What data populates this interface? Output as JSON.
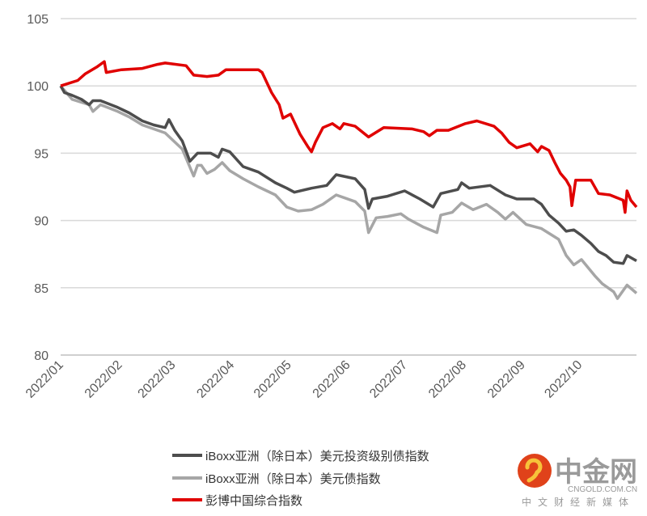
{
  "chart_data": {
    "type": "line",
    "title": "",
    "xlabel": "",
    "ylabel": "",
    "ylim": [
      80,
      105
    ],
    "yticks": [
      80,
      85,
      90,
      95,
      100,
      105
    ],
    "xlim": [
      "2022-01-01",
      "2022-10-31"
    ],
    "xticks": [
      {
        "date": "2022-01-01",
        "label": "2022/01"
      },
      {
        "date": "2022-02-01",
        "label": "2022/02"
      },
      {
        "date": "2022-03-01",
        "label": "2022/03"
      },
      {
        "date": "2022-04-01",
        "label": "2022/04"
      },
      {
        "date": "2022-05-01",
        "label": "2022/05"
      },
      {
        "date": "2022-06-01",
        "label": "2022/06"
      },
      {
        "date": "2022-07-01",
        "label": "2022/07"
      },
      {
        "date": "2022-08-01",
        "label": "2022/08"
      },
      {
        "date": "2022-09-01",
        "label": "2022/09"
      },
      {
        "date": "2022-10-01",
        "label": "2022/10"
      }
    ],
    "grid": true,
    "legend_position": "bottom",
    "series": [
      {
        "name": "iBoxx亚洲（除日本）美元投资级别债指数",
        "color": "#4d4d4d",
        "points": [
          [
            "2022-01-01",
            100.0
          ],
          [
            "2022-01-03",
            99.5
          ],
          [
            "2022-01-07",
            99.3
          ],
          [
            "2022-01-12",
            99.0
          ],
          [
            "2022-01-16",
            98.6
          ],
          [
            "2022-01-18",
            98.9
          ],
          [
            "2022-01-22",
            98.9
          ],
          [
            "2022-01-31",
            98.4
          ],
          [
            "2022-02-06",
            98.0
          ],
          [
            "2022-02-13",
            97.4
          ],
          [
            "2022-02-19",
            97.1
          ],
          [
            "2022-02-25",
            96.9
          ],
          [
            "2022-02-27",
            97.5
          ],
          [
            "2022-03-02",
            96.7
          ],
          [
            "2022-03-06",
            95.9
          ],
          [
            "2022-03-10",
            94.4
          ],
          [
            "2022-03-14",
            95.0
          ],
          [
            "2022-03-21",
            95.0
          ],
          [
            "2022-03-25",
            94.7
          ],
          [
            "2022-03-27",
            95.3
          ],
          [
            "2022-03-31",
            95.1
          ],
          [
            "2022-04-07",
            94.0
          ],
          [
            "2022-04-15",
            93.6
          ],
          [
            "2022-04-24",
            92.8
          ],
          [
            "2022-04-30",
            92.4
          ],
          [
            "2022-05-04",
            92.1
          ],
          [
            "2022-05-13",
            92.4
          ],
          [
            "2022-05-21",
            92.6
          ],
          [
            "2022-05-26",
            93.4
          ],
          [
            "2022-06-05",
            93.1
          ],
          [
            "2022-06-10",
            92.3
          ],
          [
            "2022-06-12",
            90.9
          ],
          [
            "2022-06-14",
            91.6
          ],
          [
            "2022-06-22",
            91.8
          ],
          [
            "2022-07-01",
            92.2
          ],
          [
            "2022-07-09",
            91.6
          ],
          [
            "2022-07-16",
            91.0
          ],
          [
            "2022-07-20",
            92.0
          ],
          [
            "2022-07-29",
            92.3
          ],
          [
            "2022-07-31",
            92.8
          ],
          [
            "2022-08-04",
            92.4
          ],
          [
            "2022-08-15",
            92.6
          ],
          [
            "2022-08-23",
            91.9
          ],
          [
            "2022-08-29",
            91.6
          ],
          [
            "2022-09-07",
            91.6
          ],
          [
            "2022-09-11",
            91.2
          ],
          [
            "2022-09-15",
            90.4
          ],
          [
            "2022-09-20",
            89.8
          ],
          [
            "2022-09-24",
            89.2
          ],
          [
            "2022-09-28",
            89.3
          ],
          [
            "2022-10-02",
            88.9
          ],
          [
            "2022-10-07",
            88.3
          ],
          [
            "2022-10-11",
            87.7
          ],
          [
            "2022-10-15",
            87.4
          ],
          [
            "2022-10-19",
            86.9
          ],
          [
            "2022-10-24",
            86.8
          ],
          [
            "2022-10-26",
            87.4
          ],
          [
            "2022-10-31",
            87.0
          ]
        ]
      },
      {
        "name": "iBoxx亚洲（除日本）美元债指数",
        "color": "#a6a6a6",
        "points": [
          [
            "2022-01-01",
            100.0
          ],
          [
            "2022-01-07",
            99.0
          ],
          [
            "2022-01-16",
            98.6
          ],
          [
            "2022-01-18",
            98.1
          ],
          [
            "2022-01-22",
            98.6
          ],
          [
            "2022-01-31",
            98.1
          ],
          [
            "2022-02-06",
            97.7
          ],
          [
            "2022-02-13",
            97.1
          ],
          [
            "2022-02-25",
            96.5
          ],
          [
            "2022-03-06",
            95.3
          ],
          [
            "2022-03-12",
            93.3
          ],
          [
            "2022-03-14",
            94.1
          ],
          [
            "2022-03-16",
            94.1
          ],
          [
            "2022-03-19",
            93.5
          ],
          [
            "2022-03-23",
            93.8
          ],
          [
            "2022-03-27",
            94.3
          ],
          [
            "2022-03-31",
            93.7
          ],
          [
            "2022-04-07",
            93.1
          ],
          [
            "2022-04-15",
            92.5
          ],
          [
            "2022-04-24",
            91.9
          ],
          [
            "2022-04-30",
            91.0
          ],
          [
            "2022-05-06",
            90.7
          ],
          [
            "2022-05-13",
            90.8
          ],
          [
            "2022-05-19",
            91.2
          ],
          [
            "2022-05-26",
            91.9
          ],
          [
            "2022-06-05",
            91.4
          ],
          [
            "2022-06-10",
            90.7
          ],
          [
            "2022-06-12",
            89.1
          ],
          [
            "2022-06-16",
            90.2
          ],
          [
            "2022-06-22",
            90.3
          ],
          [
            "2022-06-29",
            90.5
          ],
          [
            "2022-07-03",
            90.1
          ],
          [
            "2022-07-11",
            89.5
          ],
          [
            "2022-07-18",
            89.1
          ],
          [
            "2022-07-20",
            90.4
          ],
          [
            "2022-07-26",
            90.6
          ],
          [
            "2022-07-31",
            91.3
          ],
          [
            "2022-08-06",
            90.8
          ],
          [
            "2022-08-13",
            91.2
          ],
          [
            "2022-08-19",
            90.6
          ],
          [
            "2022-08-23",
            90.1
          ],
          [
            "2022-08-27",
            90.6
          ],
          [
            "2022-09-03",
            89.7
          ],
          [
            "2022-09-11",
            89.4
          ],
          [
            "2022-09-20",
            88.6
          ],
          [
            "2022-09-24",
            87.4
          ],
          [
            "2022-09-28",
            86.7
          ],
          [
            "2022-10-02",
            87.1
          ],
          [
            "2022-10-09",
            85.9
          ],
          [
            "2022-10-13",
            85.3
          ],
          [
            "2022-10-19",
            84.7
          ],
          [
            "2022-10-21",
            84.2
          ],
          [
            "2022-10-26",
            85.2
          ],
          [
            "2022-10-31",
            84.6
          ]
        ]
      },
      {
        "name": "彭博中国综合指数",
        "color": "#e00000",
        "points": [
          [
            "2022-01-01",
            100.0
          ],
          [
            "2022-01-10",
            100.4
          ],
          [
            "2022-01-14",
            100.9
          ],
          [
            "2022-01-20",
            101.4
          ],
          [
            "2022-01-24",
            101.8
          ],
          [
            "2022-01-25",
            101.0
          ],
          [
            "2022-02-02",
            101.2
          ],
          [
            "2022-02-13",
            101.3
          ],
          [
            "2022-02-21",
            101.6
          ],
          [
            "2022-02-25",
            101.7
          ],
          [
            "2022-03-08",
            101.5
          ],
          [
            "2022-03-12",
            100.8
          ],
          [
            "2022-03-19",
            100.7
          ],
          [
            "2022-03-25",
            100.8
          ],
          [
            "2022-03-29",
            101.2
          ],
          [
            "2022-04-15",
            101.2
          ],
          [
            "2022-04-17",
            101.0
          ],
          [
            "2022-04-22",
            99.5
          ],
          [
            "2022-04-26",
            98.6
          ],
          [
            "2022-04-28",
            97.6
          ],
          [
            "2022-05-02",
            97.9
          ],
          [
            "2022-05-07",
            96.4
          ],
          [
            "2022-05-11",
            95.5
          ],
          [
            "2022-05-13",
            95.1
          ],
          [
            "2022-05-15",
            95.8
          ],
          [
            "2022-05-19",
            96.9
          ],
          [
            "2022-05-24",
            97.2
          ],
          [
            "2022-05-28",
            96.8
          ],
          [
            "2022-05-30",
            97.2
          ],
          [
            "2022-06-05",
            97.0
          ],
          [
            "2022-06-12",
            96.2
          ],
          [
            "2022-06-20",
            96.9
          ],
          [
            "2022-07-05",
            96.8
          ],
          [
            "2022-07-11",
            96.6
          ],
          [
            "2022-07-14",
            96.3
          ],
          [
            "2022-07-18",
            96.7
          ],
          [
            "2022-07-24",
            96.7
          ],
          [
            "2022-08-02",
            97.2
          ],
          [
            "2022-08-08",
            97.4
          ],
          [
            "2022-08-17",
            97.0
          ],
          [
            "2022-08-21",
            96.5
          ],
          [
            "2022-08-25",
            95.8
          ],
          [
            "2022-08-29",
            95.4
          ],
          [
            "2022-09-05",
            95.7
          ],
          [
            "2022-09-09",
            95.1
          ],
          [
            "2022-09-11",
            95.5
          ],
          [
            "2022-09-15",
            95.2
          ],
          [
            "2022-09-18",
            94.3
          ],
          [
            "2022-09-21",
            93.5
          ],
          [
            "2022-09-24",
            93.0
          ],
          [
            "2022-09-26",
            92.5
          ],
          [
            "2022-09-27",
            91.1
          ],
          [
            "2022-09-29",
            93.0
          ],
          [
            "2022-10-07",
            93.0
          ],
          [
            "2022-10-11",
            92.0
          ],
          [
            "2022-10-17",
            91.9
          ],
          [
            "2022-10-24",
            91.5
          ],
          [
            "2022-10-25",
            90.6
          ],
          [
            "2022-10-26",
            92.2
          ],
          [
            "2022-10-28",
            91.5
          ],
          [
            "2022-10-31",
            91.0
          ]
        ]
      }
    ]
  },
  "watermark": {
    "brand": "中金网",
    "domain": "CNGOLD.COM.CN",
    "tagline": "中文财经新媒体",
    "logo_color": "#e0421a"
  }
}
